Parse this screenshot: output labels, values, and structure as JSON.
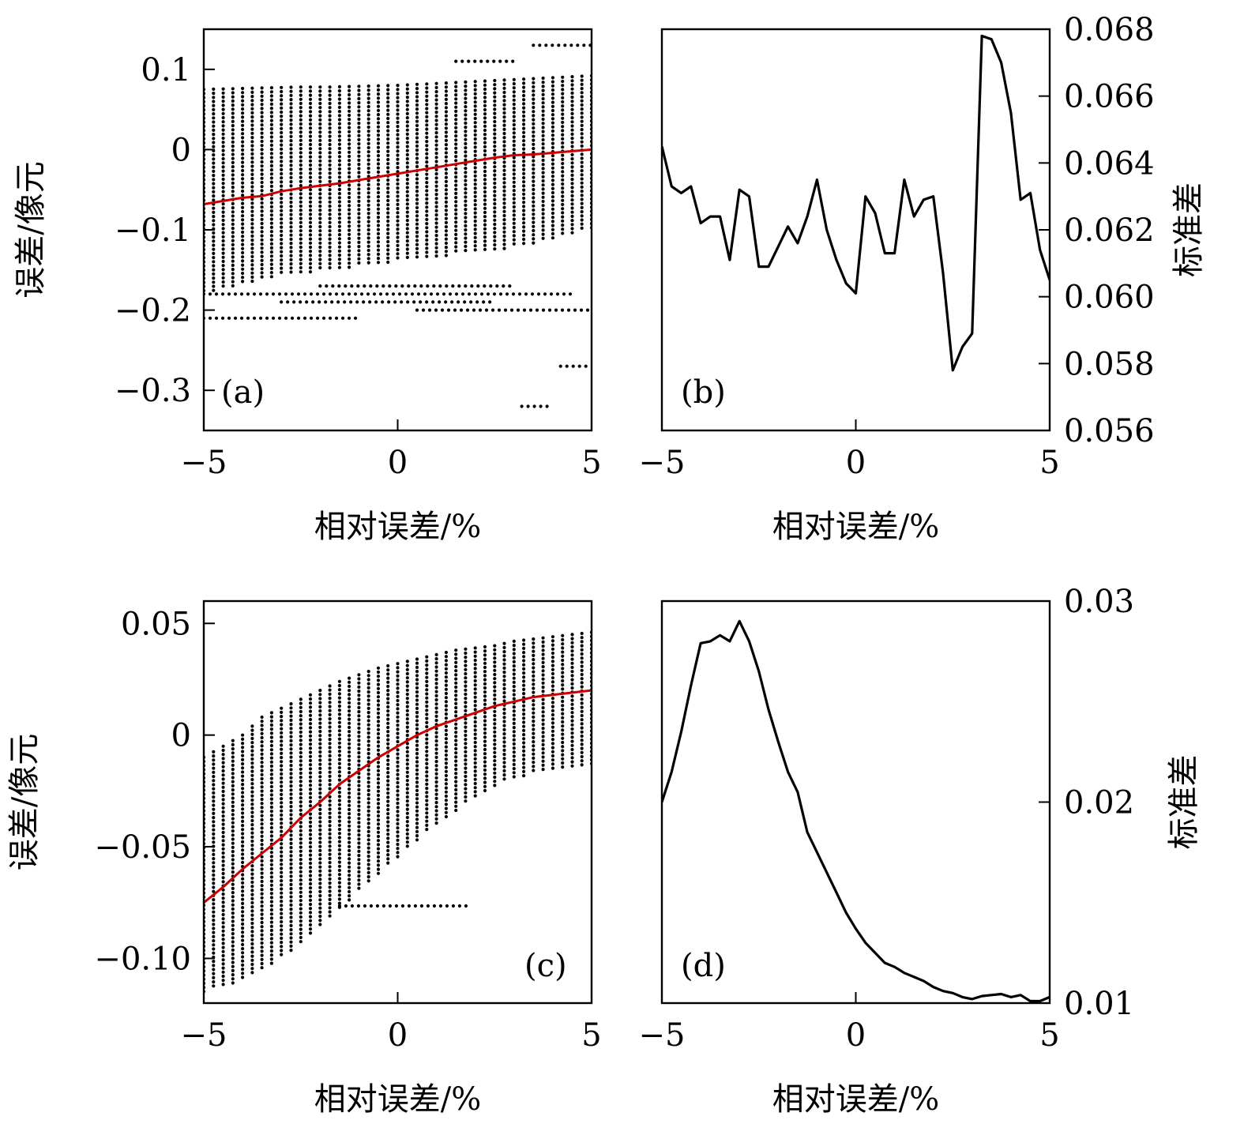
{
  "chart_data": [
    {
      "panel": "(a)",
      "type": "scatter",
      "xlabel": "相对误差/%",
      "ylabel": "误差/像元",
      "xlim": [
        -5,
        5
      ],
      "ylim": [
        -0.35,
        0.15
      ],
      "xticks": [
        -5,
        0,
        5
      ],
      "xtick_labels": [
        "−5",
        "0",
        "5"
      ],
      "yticks": [
        0.1,
        0,
        -0.1,
        -0.2,
        -0.3
      ],
      "ytick_labels": [
        "0.1",
        "0",
        "−0.1",
        "−0.2",
        "−0.3"
      ],
      "line_color": "#cc0000",
      "point_color": "#000000",
      "mean_line": {
        "x": [
          -5,
          -4.5,
          -4,
          -3.5,
          -3,
          -2.5,
          -2,
          -1.5,
          -1,
          -0.5,
          0,
          0.5,
          1,
          1.5,
          2,
          2.5,
          3,
          3.5,
          4,
          4.5,
          5
        ],
        "y": [
          -0.068,
          -0.064,
          -0.06,
          -0.058,
          -0.052,
          -0.048,
          -0.045,
          -0.042,
          -0.038,
          -0.034,
          -0.03,
          -0.026,
          -0.022,
          -0.018,
          -0.014,
          -0.01,
          -0.007,
          -0.006,
          -0.004,
          -0.002,
          0.0
        ]
      },
      "scatter_columns": {
        "x_start": -5,
        "x_end": 5,
        "count": 41,
        "upper": [
          0.075,
          0.076,
          0.077,
          0.078,
          0.078,
          0.079,
          0.08,
          0.082,
          0.084,
          0.086,
          0.088,
          0.09,
          0.092
        ],
        "lower": [
          -0.18,
          -0.17,
          -0.16,
          -0.155,
          -0.15,
          -0.145,
          -0.14,
          -0.135,
          -0.13,
          -0.125,
          -0.12,
          -0.11,
          -0.1
        ]
      },
      "outlier_rows": [
        {
          "y": -0.21,
          "x": [
            -5,
            -1
          ]
        },
        {
          "y": -0.2,
          "x": [
            0.5,
            5
          ]
        },
        {
          "y": -0.19,
          "x": [
            -3,
            2.5
          ]
        },
        {
          "y": -0.18,
          "x": [
            -5,
            4.5
          ]
        },
        {
          "y": -0.17,
          "x": [
            -2,
            3
          ]
        },
        {
          "y": -0.27,
          "x": [
            4.2,
            5
          ]
        },
        {
          "y": -0.32,
          "x": [
            3.2,
            4
          ]
        },
        {
          "y": 0.13,
          "x": [
            3.5,
            5
          ]
        },
        {
          "y": 0.11,
          "x": [
            1.5,
            3
          ]
        }
      ]
    },
    {
      "panel": "(b)",
      "type": "line",
      "xlabel": "相对误差/%",
      "ylabel": "标准差",
      "xlim": [
        -5,
        5
      ],
      "ylim": [
        0.056,
        0.068
      ],
      "xticks": [
        -5,
        0,
        5
      ],
      "xtick_labels": [
        "−5",
        "0",
        "5"
      ],
      "yticks": [
        0.056,
        0.058,
        0.06,
        0.062,
        0.064,
        0.066,
        0.068
      ],
      "ytick_labels": [
        "0.056",
        "0.058",
        "0.060",
        "0.062",
        "0.064",
        "0.066",
        "0.068"
      ],
      "line_color": "#000000",
      "x": [
        -5,
        -4.75,
        -4.5,
        -4.25,
        -4,
        -3.75,
        -3.5,
        -3.25,
        -3,
        -2.75,
        -2.5,
        -2.25,
        -2,
        -1.75,
        -1.5,
        -1.25,
        -1,
        -0.75,
        -0.5,
        -0.25,
        0,
        0.25,
        0.5,
        0.75,
        1,
        1.25,
        1.5,
        1.75,
        2,
        2.25,
        2.5,
        2.75,
        3,
        3.25,
        3.5,
        3.75,
        4,
        4.25,
        4.5,
        4.75,
        5
      ],
      "y": [
        0.0645,
        0.0633,
        0.0631,
        0.0633,
        0.0622,
        0.0624,
        0.0624,
        0.0611,
        0.0632,
        0.063,
        0.0609,
        0.0609,
        0.0615,
        0.0621,
        0.0616,
        0.0624,
        0.0635,
        0.062,
        0.0611,
        0.0604,
        0.0601,
        0.063,
        0.0625,
        0.0613,
        0.0613,
        0.0635,
        0.0624,
        0.0629,
        0.063,
        0.0607,
        0.0578,
        0.0585,
        0.0589,
        0.0678,
        0.0677,
        0.067,
        0.0655,
        0.0629,
        0.0631,
        0.0614,
        0.0605
      ]
    },
    {
      "panel": "(c)",
      "type": "scatter",
      "xlabel": "相对误差/%",
      "ylabel": "误差/像元",
      "xlim": [
        -5,
        5
      ],
      "ylim": [
        -0.12,
        0.06
      ],
      "xticks": [
        -5,
        0,
        5
      ],
      "xtick_labels": [
        "−5",
        "0",
        "5"
      ],
      "yticks": [
        0.05,
        0,
        -0.05,
        -0.1
      ],
      "ytick_labels": [
        "0.05",
        "0",
        "−0.05",
        "−0.10"
      ],
      "line_color": "#cc0000",
      "point_color": "#000000",
      "mean_line": {
        "x": [
          -5,
          -4.5,
          -4,
          -3.5,
          -3,
          -2.5,
          -2,
          -1.5,
          -1,
          -0.5,
          0,
          0.5,
          1,
          1.5,
          2,
          2.5,
          3,
          3.5,
          4,
          4.5,
          5
        ],
        "y": [
          -0.075,
          -0.068,
          -0.06,
          -0.053,
          -0.046,
          -0.037,
          -0.03,
          -0.022,
          -0.016,
          -0.01,
          -0.005,
          0.0,
          0.004,
          0.007,
          0.01,
          0.013,
          0.015,
          0.017,
          0.018,
          0.019,
          0.02
        ]
      },
      "scatter_columns": {
        "x_start": -5,
        "x_end": 5,
        "count": 41,
        "upper": [
          -0.01,
          -0.005,
          0.0,
          0.008,
          0.012,
          0.016,
          0.02,
          0.024,
          0.027,
          0.03,
          0.032,
          0.034,
          0.036,
          0.038,
          0.039,
          0.04,
          0.042,
          0.043,
          0.044,
          0.045,
          0.046
        ],
        "lower": [
          -0.115,
          -0.112,
          -0.11,
          -0.105,
          -0.1,
          -0.093,
          -0.085,
          -0.078,
          -0.07,
          -0.062,
          -0.055,
          -0.048,
          -0.04,
          -0.034,
          -0.028,
          -0.023,
          -0.02,
          -0.017,
          -0.015,
          -0.014,
          -0.013
        ]
      },
      "outlier_rows": [
        {
          "y": -0.0765,
          "x": [
            -1.5,
            1.8
          ]
        }
      ]
    },
    {
      "panel": "(d)",
      "type": "line",
      "xlabel": "相对误差/%",
      "ylabel": "标准差",
      "xlim": [
        -5,
        5
      ],
      "ylim": [
        0.01,
        0.03
      ],
      "xticks": [
        -5,
        0,
        5
      ],
      "xtick_labels": [
        "−5",
        "0",
        "5"
      ],
      "yticks": [
        0.01,
        0.02,
        0.03
      ],
      "ytick_labels": [
        "0.01",
        "0.02",
        "0.03"
      ],
      "line_color": "#000000",
      "x": [
        -5,
        -4.75,
        -4.5,
        -4.25,
        -4,
        -3.75,
        -3.5,
        -3.25,
        -3,
        -2.75,
        -2.5,
        -2.25,
        -2,
        -1.75,
        -1.5,
        -1.25,
        -1,
        -0.75,
        -0.5,
        -0.25,
        0,
        0.25,
        0.5,
        0.75,
        1,
        1.25,
        1.5,
        1.75,
        2,
        2.25,
        2.5,
        2.75,
        3,
        3.25,
        3.5,
        3.75,
        4,
        4.25,
        4.5,
        4.75,
        5
      ],
      "y": [
        0.02,
        0.0215,
        0.0235,
        0.0258,
        0.0279,
        0.028,
        0.0283,
        0.028,
        0.029,
        0.028,
        0.0265,
        0.0246,
        0.023,
        0.0215,
        0.0205,
        0.0185,
        0.0175,
        0.0165,
        0.0155,
        0.0145,
        0.0137,
        0.013,
        0.0125,
        0.012,
        0.0118,
        0.0115,
        0.0113,
        0.0111,
        0.0108,
        0.0106,
        0.0105,
        0.0103,
        0.0102,
        0.01035,
        0.0104,
        0.01045,
        0.0103,
        0.0104,
        0.0101,
        0.0101,
        0.0103
      ]
    }
  ]
}
